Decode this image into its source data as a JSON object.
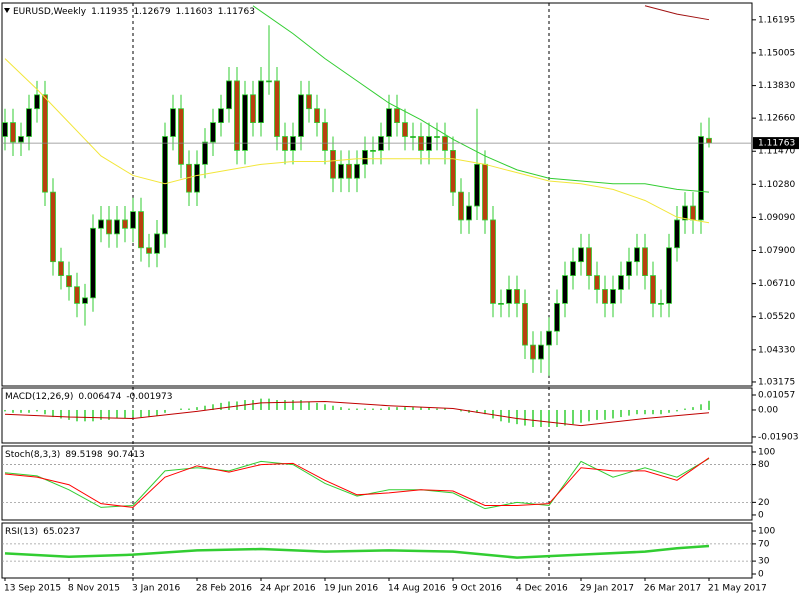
{
  "chart_data": [
    {
      "type": "candlestick",
      "title": "EURUSD,Weekly",
      "categories": [
        "13 Sep 2015",
        null,
        null,
        null,
        null,
        null,
        null,
        null,
        "8 Nov 2015",
        null,
        null,
        null,
        null,
        null,
        null,
        null,
        "3 Jan 2016",
        null,
        null,
        null,
        null,
        null,
        null,
        null,
        "28 Feb 2016",
        null,
        null,
        null,
        null,
        null,
        null,
        null,
        "24 Apr 2016",
        null,
        null,
        null,
        null,
        null,
        null,
        null,
        "19 Jun 2016",
        null,
        null,
        null,
        null,
        null,
        null,
        null,
        "14 Aug 2016",
        null,
        null,
        null,
        null,
        null,
        null,
        null,
        "9 Oct 2016",
        null,
        null,
        null,
        null,
        null,
        null,
        null,
        "4 Dec 2016",
        null,
        null,
        null,
        null,
        null,
        null,
        null,
        "29 Jan 2017",
        null,
        null,
        null,
        null,
        null,
        null,
        null,
        "26 Mar 2017",
        null,
        null,
        null,
        null,
        null,
        null,
        null,
        "21 May 2017"
      ],
      "open": [
        1.12,
        1.125,
        1.118,
        1.12,
        1.13,
        1.135,
        1.1,
        1.075,
        1.07,
        1.066,
        1.06,
        1.062,
        1.087,
        1.09,
        1.085,
        1.09,
        1.087,
        1.093,
        1.08,
        1.078,
        1.085,
        1.12,
        1.13,
        1.11,
        1.1,
        1.11,
        1.118,
        1.125,
        1.13,
        1.14,
        1.115,
        1.135,
        1.125,
        1.14,
        1.14,
        1.12,
        1.115,
        1.12,
        1.135,
        1.13,
        1.125,
        1.115,
        1.105,
        1.11,
        1.105,
        1.11,
        1.115,
        1.115,
        1.12,
        1.13,
        1.125,
        1.12,
        1.12,
        1.115,
        1.12,
        1.12,
        1.115,
        1.1,
        1.09,
        1.095,
        1.11,
        1.09,
        1.06,
        1.06,
        1.065,
        1.06,
        1.045,
        1.04,
        1.045,
        1.05,
        1.06,
        1.07,
        1.075,
        1.08,
        1.07,
        1.065,
        1.06,
        1.065,
        1.07,
        1.075,
        1.08,
        1.07,
        1.06,
        1.06,
        1.08,
        1.09,
        1.095,
        1.09,
        1.11935
      ],
      "high": [
        1.13,
        1.13,
        1.125,
        1.135,
        1.14,
        1.14,
        1.105,
        1.08,
        1.075,
        1.071,
        1.067,
        1.092,
        1.095,
        1.095,
        1.095,
        1.095,
        1.098,
        1.098,
        1.085,
        1.09,
        1.125,
        1.135,
        1.135,
        1.115,
        1.115,
        1.123,
        1.13,
        1.135,
        1.145,
        1.145,
        1.14,
        1.14,
        1.145,
        1.16,
        1.145,
        1.125,
        1.125,
        1.14,
        1.14,
        1.135,
        1.13,
        1.12,
        1.115,
        1.115,
        1.115,
        1.12,
        1.12,
        1.125,
        1.135,
        1.135,
        1.13,
        1.125,
        1.125,
        1.125,
        1.125,
        1.125,
        1.12,
        1.105,
        1.1,
        1.13,
        1.115,
        1.095,
        1.065,
        1.07,
        1.07,
        1.065,
        1.05,
        1.05,
        1.055,
        1.065,
        1.075,
        1.08,
        1.085,
        1.085,
        1.075,
        1.07,
        1.07,
        1.075,
        1.08,
        1.085,
        1.085,
        1.075,
        1.065,
        1.085,
        1.095,
        1.1,
        1.1,
        1.125,
        1.12679
      ],
      "low": [
        1.115,
        1.113,
        1.113,
        1.115,
        1.125,
        1.095,
        1.07,
        1.065,
        1.061,
        1.055,
        1.052,
        1.057,
        1.082,
        1.08,
        1.08,
        1.082,
        1.082,
        1.075,
        1.073,
        1.073,
        1.08,
        1.115,
        1.105,
        1.095,
        1.095,
        1.105,
        1.113,
        1.12,
        1.125,
        1.11,
        1.11,
        1.12,
        1.12,
        1.135,
        1.115,
        1.11,
        1.11,
        1.115,
        1.125,
        1.12,
        1.11,
        1.1,
        1.1,
        1.1,
        1.1,
        1.105,
        1.11,
        1.11,
        1.115,
        1.12,
        1.115,
        1.115,
        1.11,
        1.11,
        1.115,
        1.11,
        1.095,
        1.085,
        1.085,
        1.09,
        1.085,
        1.055,
        1.055,
        1.055,
        1.055,
        1.04,
        1.035,
        1.035,
        1.034,
        1.045,
        1.055,
        1.065,
        1.07,
        1.065,
        1.06,
        1.055,
        1.055,
        1.06,
        1.065,
        1.07,
        1.065,
        1.055,
        1.055,
        1.055,
        1.075,
        1.085,
        1.085,
        1.085,
        1.11603
      ],
      "close": [
        1.125,
        1.118,
        1.12,
        1.13,
        1.135,
        1.1,
        1.075,
        1.07,
        1.066,
        1.06,
        1.062,
        1.087,
        1.09,
        1.085,
        1.09,
        1.087,
        1.093,
        1.08,
        1.078,
        1.085,
        1.12,
        1.13,
        1.11,
        1.1,
        1.11,
        1.118,
        1.125,
        1.13,
        1.14,
        1.115,
        1.135,
        1.125,
        1.14,
        1.14,
        1.12,
        1.115,
        1.12,
        1.135,
        1.13,
        1.125,
        1.115,
        1.105,
        1.11,
        1.105,
        1.11,
        1.115,
        1.115,
        1.12,
        1.13,
        1.125,
        1.12,
        1.12,
        1.115,
        1.12,
        1.12,
        1.115,
        1.1,
        1.09,
        1.095,
        1.11,
        1.09,
        1.06,
        1.06,
        1.065,
        1.06,
        1.045,
        1.04,
        1.045,
        1.05,
        1.06,
        1.07,
        1.075,
        1.08,
        1.07,
        1.065,
        1.06,
        1.065,
        1.07,
        1.075,
        1.08,
        1.07,
        1.06,
        1.06,
        1.08,
        1.09,
        1.095,
        1.09,
        1.12,
        1.11763
      ],
      "wick_color": "#32cd32",
      "bull_color": "#000000",
      "bear_color": "#b8400e",
      "lines": [
        {
          "color": "#f2e63a",
          "x": [
            0,
            4,
            8,
            12,
            16,
            20,
            24,
            28,
            32,
            36,
            40,
            44,
            48,
            52,
            56,
            60,
            64,
            68,
            72,
            76,
            80,
            84,
            88
          ],
          "values": [
            1.148,
            1.137,
            1.125,
            1.113,
            1.106,
            1.103,
            1.106,
            1.108,
            1.11,
            1.111,
            1.111,
            1.112,
            1.112,
            1.112,
            1.112,
            1.11,
            1.107,
            1.104,
            1.103,
            1.101,
            1.097,
            1.091,
            1.089
          ]
        },
        {
          "color": "#32cd32",
          "x": [
            31,
            36,
            40,
            44,
            48,
            52,
            56,
            60,
            64,
            68,
            72,
            76,
            80,
            84,
            88
          ],
          "values": [
            1.167,
            1.157,
            1.148,
            1.14,
            1.132,
            1.126,
            1.119,
            1.113,
            1.108,
            1.105,
            1.104,
            1.103,
            1.103,
            1.101,
            1.1
          ]
        },
        {
          "color": "#a01010",
          "x": [
            80,
            84,
            88
          ],
          "values": [
            1.167,
            1.164,
            1.162
          ]
        }
      ],
      "period_separators": [
        16,
        68
      ],
      "ylim": [
        1.0303,
        1.168
      ],
      "yticks": [
        1.16195,
        1.15005,
        {
          "value": 1.1383,
          "label": "1.13830"
        },
        {
          "value": 1.1266,
          "label": "1.12660"
        },
        {
          "value": 1.1147,
          "label": "1.11470"
        },
        {
          "value": 1.1028,
          "label": "1.10280"
        },
        {
          "value": 1.0909,
          "label": "1.09090"
        },
        {
          "value": 1.079,
          "label": "1.07900"
        },
        {
          "value": 1.0671,
          "label": "1.06710"
        },
        {
          "value": 1.0552,
          "label": "1.05520"
        },
        {
          "value": 1.0433,
          "label": "1.04330"
        },
        1.03175
      ]
    },
    {
      "type": "macd",
      "title": "MACD(12,26,9)",
      "histogram": {
        "color": "#32cd32",
        "values": [
          -0.001,
          -0.002,
          -0.002,
          -0.002,
          -0.001,
          -0.003,
          -0.005,
          -0.006,
          -0.007,
          -0.008,
          -0.008,
          -0.008,
          -0.007,
          -0.007,
          -0.006,
          -0.006,
          -0.005,
          -0.005,
          -0.005,
          -0.004,
          -0.002,
          0,
          0.001,
          0.001,
          0.002,
          0.003,
          0.004,
          0.005,
          0.006,
          0.006,
          0.007,
          0.007,
          0.008,
          0.008,
          0.007,
          0.007,
          0.007,
          0.007,
          0.006,
          0.005,
          0.004,
          0.003,
          0.002,
          0.001,
          0.001,
          0.001,
          0.001,
          0.001,
          0.002,
          0.002,
          0.002,
          0.002,
          0.002,
          0.002,
          0.001,
          0.001,
          0,
          -0.001,
          -0.002,
          -0.002,
          -0.003,
          -0.006,
          -0.008,
          -0.009,
          -0.01,
          -0.011,
          -0.012,
          -0.012,
          -0.012,
          -0.012,
          -0.011,
          -0.01,
          -0.009,
          -0.008,
          -0.007,
          -0.007,
          -0.006,
          -0.005,
          -0.004,
          -0.003,
          -0.003,
          -0.003,
          -0.003,
          -0.002,
          -0.001,
          0.001,
          0.002,
          0.004,
          0.006474
        ]
      },
      "signal": {
        "color": "#c00000",
        "x": [
          0,
          8,
          16,
          24,
          32,
          40,
          48,
          56,
          64,
          72,
          80,
          88
        ],
        "values": [
          -0.003,
          -0.005,
          -0.006,
          -0.001,
          0.005,
          0.006,
          0.003,
          0.001,
          -0.006,
          -0.011,
          -0.006,
          -0.001973
        ]
      },
      "ylim": [
        -0.0233,
        0.0155
      ],
      "yticks": [
        0.01057,
        {
          "value": 0,
          "label": "0.00"
        },
        -0.01903
      ]
    },
    {
      "type": "oscillator",
      "title": "Stoch(8,3,3)",
      "series": [
        {
          "color": "#32cd32",
          "x": [
            0,
            4,
            8,
            12,
            16,
            20,
            24,
            28,
            32,
            36,
            40,
            44,
            48,
            52,
            56,
            60,
            64,
            68,
            72,
            76,
            80,
            84,
            88
          ],
          "values": [
            67,
            62,
            40,
            12,
            15,
            70,
            75,
            70,
            85,
            80,
            50,
            30,
            40,
            40,
            35,
            10,
            20,
            15,
            85,
            60,
            75,
            60,
            89.5198
          ]
        },
        {
          "color": "#ff0000",
          "x": [
            0,
            4,
            8,
            12,
            16,
            20,
            24,
            28,
            32,
            36,
            40,
            44,
            48,
            52,
            56,
            60,
            64,
            68,
            72,
            76,
            80,
            84,
            88
          ],
          "values": [
            65,
            60,
            48,
            18,
            12,
            60,
            78,
            68,
            80,
            82,
            55,
            32,
            35,
            40,
            38,
            15,
            15,
            18,
            75,
            70,
            70,
            55,
            90.7413
          ]
        }
      ],
      "levels": [
        80,
        20
      ],
      "ylim": [
        -8,
        109.5
      ],
      "yticks": [
        100,
        80,
        20,
        0
      ]
    },
    {
      "type": "oscillator",
      "title": "RSI(13)",
      "series": [
        {
          "color": "#32cd32",
          "x": [
            0,
            8,
            16,
            24,
            32,
            40,
            48,
            56,
            64,
            72,
            80,
            84,
            88
          ],
          "values": [
            48,
            40,
            45,
            55,
            58,
            52,
            55,
            52,
            38,
            45,
            52,
            60,
            65.0237
          ]
        }
      ],
      "levels": [
        70,
        30
      ],
      "ylim": [
        -9.3,
        118.6
      ],
      "yticks": [
        100,
        70,
        30,
        0
      ]
    }
  ]
}
